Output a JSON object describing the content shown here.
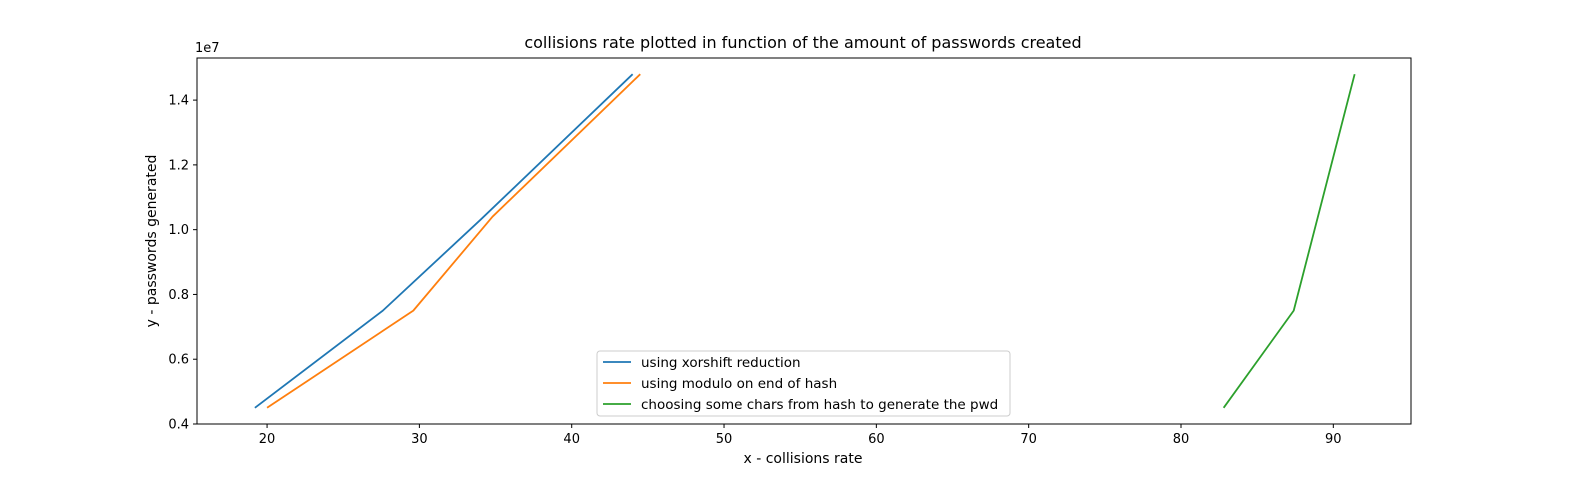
{
  "chart_data": {
    "type": "line",
    "title": "collisions rate plotted in function of the amount of passwords created",
    "xlabel": "x - collisions rate",
    "ylabel": "y - passwords generated",
    "y_offset_label": "1e7",
    "xlim": [
      15.4,
      95.1
    ],
    "ylim": [
      4000000,
      15300000
    ],
    "xticks": [
      20,
      30,
      40,
      50,
      60,
      70,
      80,
      90
    ],
    "yticks": [
      4000000,
      6000000,
      8000000,
      10000000,
      12000000,
      14000000
    ],
    "ytick_labels": [
      "0.4",
      "0.6",
      "0.8",
      "1.0",
      "1.2",
      "1.4"
    ],
    "grid": false,
    "legend_position": "lower-center",
    "series": [
      {
        "name": "using xorshift reduction",
        "color": "#1f77b4",
        "x": [
          19.2,
          27.6,
          34.0,
          44.0
        ],
        "y": [
          4500000,
          7500000,
          10300000,
          14800000
        ]
      },
      {
        "name": "using modulo on end of hash",
        "color": "#ff7f0e",
        "x": [
          20.0,
          29.6,
          34.8,
          44.5
        ],
        "y": [
          4500000,
          7500000,
          10400000,
          14800000
        ]
      },
      {
        "name": "choosing some chars from hash to generate the pwd",
        "color": "#2ca02c",
        "x": [
          82.8,
          87.4,
          91.4
        ],
        "y": [
          4500000,
          7500000,
          14800000
        ]
      }
    ]
  }
}
